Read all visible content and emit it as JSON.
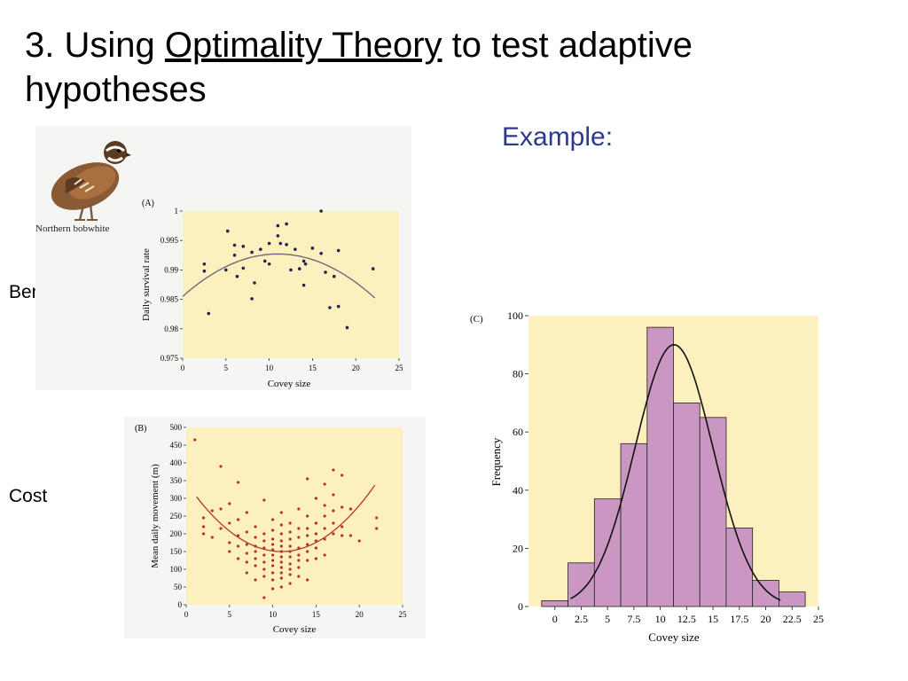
{
  "slide": {
    "title_prefix": "3. Using ",
    "title_link": "Optimality Theory",
    "title_suffix": " to test adaptive hypotheses",
    "example_label": "Example:",
    "benefit_label": "Benefit",
    "cost_label": "Cost",
    "bird_caption": "Northern bobwhite"
  },
  "colors": {
    "plot_bg": "#fdf0bf",
    "dot_a": "#23234d",
    "dot_b": "#b8332a",
    "bar_fill": "#c997c2",
    "curve": "#6e6a7a",
    "example": "#2b3a8f"
  },
  "chart_data": [
    {
      "type": "scatter",
      "panel": "(A)",
      "xlabel": "Covey size",
      "ylabel": "Daily survival rate",
      "xlim": [
        0,
        25
      ],
      "ylim": [
        0.975,
        1
      ],
      "xticks": [
        "0",
        "5",
        "10",
        "15",
        "20",
        "25"
      ],
      "yticks": [
        "0.975",
        "0.98",
        "0.985",
        "0.99",
        "0.995",
        "1"
      ],
      "points": [
        [
          2.5,
          0.991
        ],
        [
          2.5,
          0.9898
        ],
        [
          3,
          0.9826
        ],
        [
          5,
          0.99
        ],
        [
          5.2,
          0.9966
        ],
        [
          6,
          0.9942
        ],
        [
          6,
          0.9925
        ],
        [
          6.3,
          0.9889
        ],
        [
          7,
          0.9903
        ],
        [
          7,
          0.994
        ],
        [
          8,
          0.993
        ],
        [
          8,
          0.9851
        ],
        [
          8.3,
          0.9878
        ],
        [
          9,
          0.9935
        ],
        [
          9.5,
          0.9915
        ],
        [
          10,
          0.9945
        ],
        [
          10,
          0.991
        ],
        [
          11,
          0.9958
        ],
        [
          11,
          0.9975
        ],
        [
          11.3,
          0.9945
        ],
        [
          12,
          0.9978
        ],
        [
          12,
          0.9943
        ],
        [
          12.5,
          0.99
        ],
        [
          13,
          0.9935
        ],
        [
          13.5,
          0.9902
        ],
        [
          14,
          0.9874
        ],
        [
          14,
          0.9915
        ],
        [
          14.2,
          0.991
        ],
        [
          15,
          0.9937
        ],
        [
          16,
          0.9928
        ],
        [
          16,
          1.0
        ],
        [
          16.5,
          0.9896
        ],
        [
          17,
          0.9836
        ],
        [
          17.5,
          0.9889
        ],
        [
          18,
          0.9933
        ],
        [
          18,
          0.9838
        ],
        [
          19,
          0.9802
        ],
        [
          22,
          0.9902
        ]
      ],
      "fit": {
        "type": "quadratic",
        "vertex_x": 11,
        "vertex_y": 0.9927,
        "y_at_0": 0.9855
      }
    },
    {
      "type": "scatter",
      "panel": "(B)",
      "xlabel": "Covey size",
      "ylabel": "Mean daily movement (m)",
      "xlim": [
        0,
        25
      ],
      "ylim": [
        0,
        500
      ],
      "xticks": [
        "0",
        "5",
        "10",
        "15",
        "20",
        "25"
      ],
      "yticks": [
        "0",
        "50",
        "100",
        "150",
        "200",
        "250",
        "300",
        "350",
        "400",
        "450",
        "500"
      ],
      "points": [
        [
          1,
          465
        ],
        [
          2,
          245
        ],
        [
          2,
          220
        ],
        [
          2,
          200
        ],
        [
          3,
          265
        ],
        [
          3,
          190
        ],
        [
          4,
          390
        ],
        [
          4,
          270
        ],
        [
          4,
          215
        ],
        [
          5,
          285
        ],
        [
          5,
          230
        ],
        [
          5,
          175
        ],
        [
          5,
          150
        ],
        [
          6,
          345
        ],
        [
          6,
          240
        ],
        [
          6,
          195
        ],
        [
          6,
          165
        ],
        [
          6,
          130
        ],
        [
          7,
          260
        ],
        [
          7,
          205
        ],
        [
          7,
          170
        ],
        [
          7,
          145
        ],
        [
          7,
          120
        ],
        [
          7,
          90
        ],
        [
          8,
          220
        ],
        [
          8,
          190
        ],
        [
          8,
          165
        ],
        [
          8,
          150
        ],
        [
          8,
          130
        ],
        [
          8,
          110
        ],
        [
          8,
          70
        ],
        [
          9,
          295
        ],
        [
          9,
          200
        ],
        [
          9,
          180
        ],
        [
          9,
          160
        ],
        [
          9,
          140
        ],
        [
          9,
          120
        ],
        [
          9,
          100
        ],
        [
          9,
          80
        ],
        [
          9,
          20
        ],
        [
          10,
          240
        ],
        [
          10,
          210
        ],
        [
          10,
          185
        ],
        [
          10,
          170
        ],
        [
          10,
          155
        ],
        [
          10,
          140
        ],
        [
          10,
          125
        ],
        [
          10,
          110
        ],
        [
          10,
          90
        ],
        [
          10,
          70
        ],
        [
          10,
          45
        ],
        [
          11,
          260
        ],
        [
          11,
          225
        ],
        [
          11,
          200
        ],
        [
          11,
          180
        ],
        [
          11,
          165
        ],
        [
          11,
          150
        ],
        [
          11,
          135
        ],
        [
          11,
          120
        ],
        [
          11,
          105
        ],
        [
          11,
          90
        ],
        [
          11,
          75
        ],
        [
          11,
          50
        ],
        [
          12,
          230
        ],
        [
          12,
          205
        ],
        [
          12,
          185
        ],
        [
          12,
          165
        ],
        [
          12,
          150
        ],
        [
          12,
          135
        ],
        [
          12,
          115
        ],
        [
          12,
          100
        ],
        [
          12,
          85
        ],
        [
          12,
          60
        ],
        [
          13,
          270
        ],
        [
          13,
          215
        ],
        [
          13,
          190
        ],
        [
          13,
          160
        ],
        [
          13,
          140
        ],
        [
          13,
          125
        ],
        [
          13,
          105
        ],
        [
          13,
          80
        ],
        [
          14,
          355
        ],
        [
          14,
          250
        ],
        [
          14,
          215
        ],
        [
          14,
          195
        ],
        [
          14,
          170
        ],
        [
          14,
          150
        ],
        [
          14,
          125
        ],
        [
          14,
          70
        ],
        [
          15,
          300
        ],
        [
          15,
          230
        ],
        [
          15,
          200
        ],
        [
          15,
          180
        ],
        [
          15,
          160
        ],
        [
          15,
          130
        ],
        [
          16,
          340
        ],
        [
          16,
          280
        ],
        [
          16,
          250
        ],
        [
          16,
          215
        ],
        [
          16,
          185
        ],
        [
          16,
          140
        ],
        [
          17,
          380
        ],
        [
          17,
          310
        ],
        [
          17,
          265
        ],
        [
          17,
          230
        ],
        [
          17,
          200
        ],
        [
          18,
          365
        ],
        [
          18,
          275
        ],
        [
          18,
          220
        ],
        [
          18,
          195
        ],
        [
          19,
          270
        ],
        [
          19,
          195
        ],
        [
          20,
          180
        ],
        [
          22,
          245
        ],
        [
          22,
          215
        ]
      ],
      "fit": {
        "type": "quadratic",
        "vertex_x": 11,
        "vertex_y": 150,
        "y_at_2": 280
      }
    },
    {
      "type": "bar",
      "panel": "(C)",
      "xlabel": "Covey size",
      "ylabel": "Frequency",
      "xlim": [
        -2.5,
        25
      ],
      "ylim": [
        0,
        100
      ],
      "xticks": [
        "0",
        "2.5",
        "5",
        "7.5",
        "10",
        "12.5",
        "15",
        "17.5",
        "20",
        "22.5",
        "25"
      ],
      "yticks": [
        "0",
        "20",
        "40",
        "60",
        "80",
        "100"
      ],
      "bin_edges": [
        -1.25,
        1.25,
        3.75,
        6.25,
        8.75,
        11.25,
        13.75,
        16.25,
        18.75,
        21.25,
        23.75
      ],
      "values": [
        2,
        15,
        37,
        56,
        96,
        70,
        65,
        27,
        9,
        5
      ],
      "fit": {
        "type": "normal",
        "mean": 11.3,
        "sd": 3.7,
        "peak": 90
      }
    }
  ]
}
